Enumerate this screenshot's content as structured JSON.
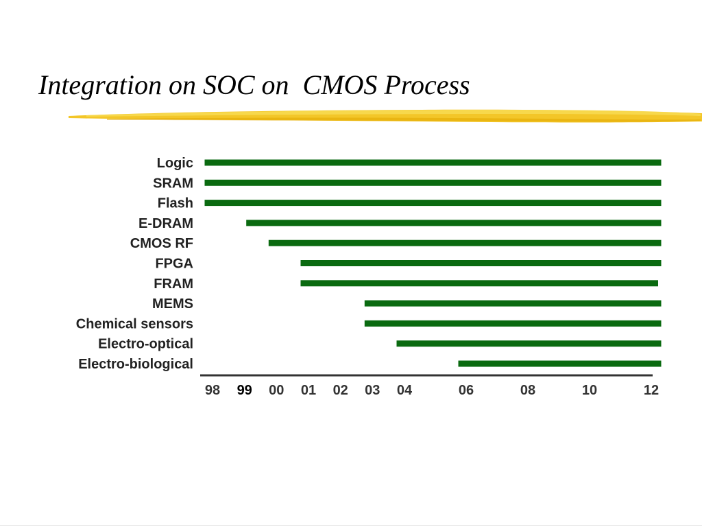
{
  "slide": {
    "title": "Integration on SOC on  CMOS Process",
    "accent_color": "#f2c31c"
  },
  "chart_data": {
    "type": "bar",
    "orientation": "horizontal",
    "title": "",
    "xlabel": "",
    "ylabel": "",
    "bar_color": "#0a6a10",
    "grid": false,
    "xlim": [
      1998,
      2012.6
    ],
    "x_ticks": [
      {
        "label": "98",
        "value": 1998,
        "bold": false
      },
      {
        "label": "99",
        "value": 1999,
        "bold": true
      },
      {
        "label": "00",
        "value": 2000,
        "bold": false
      },
      {
        "label": "01",
        "value": 2001,
        "bold": false
      },
      {
        "label": "02",
        "value": 2002,
        "bold": false
      },
      {
        "label": "03",
        "value": 2003,
        "bold": false
      },
      {
        "label": "04",
        "value": 2004,
        "bold": false
      },
      {
        "label": "06",
        "value": 2006,
        "bold": false
      },
      {
        "label": "08",
        "value": 2008,
        "bold": false
      },
      {
        "label": "10",
        "value": 2010,
        "bold": false
      },
      {
        "label": "12",
        "value": 2012,
        "bold": false
      }
    ],
    "categories": [
      "Logic",
      "SRAM",
      "Flash",
      "E-DRAM",
      "CMOS RF",
      "FPGA",
      "FRAM",
      "MEMS",
      "Chemical sensors",
      "Electro-optical",
      "Electro-biological"
    ],
    "bars": [
      {
        "label": "Logic",
        "start": 1998,
        "end": 2012.6
      },
      {
        "label": "SRAM",
        "start": 1998,
        "end": 2012.6
      },
      {
        "label": "Flash",
        "start": 1998,
        "end": 2012.6
      },
      {
        "label": "E-DRAM",
        "start": 1999.3,
        "end": 2012.6
      },
      {
        "label": "CMOS RF",
        "start": 2000,
        "end": 2012.6
      },
      {
        "label": "FPGA",
        "start": 2001,
        "end": 2012.6
      },
      {
        "label": "FRAM",
        "start": 2001,
        "end": 2012.5
      },
      {
        "label": "MEMS",
        "start": 2003,
        "end": 2012.6
      },
      {
        "label": "Chemical sensors",
        "start": 2003,
        "end": 2012.6
      },
      {
        "label": "Electro-optical",
        "start": 2004,
        "end": 2012.6
      },
      {
        "label": "Electro-biological",
        "start": 2006,
        "end": 2012.6
      }
    ]
  }
}
